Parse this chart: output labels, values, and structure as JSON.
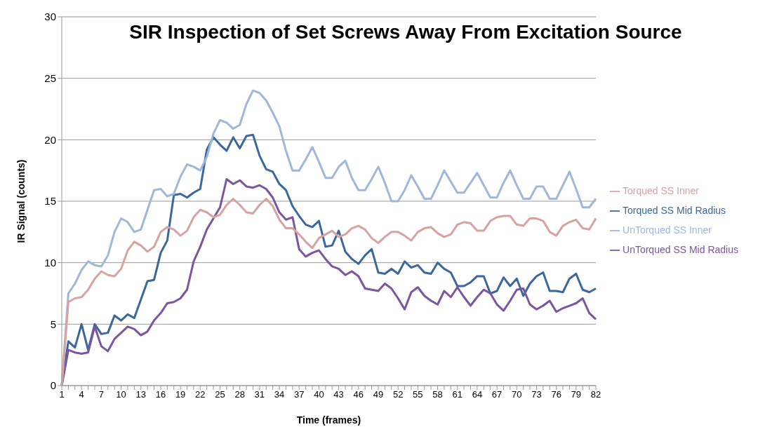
{
  "chart_data": {
    "type": "line",
    "title": "SIR Inspection of Set Screws Away From Excitation Source",
    "xlabel": "Time (frames)",
    "ylabel": "IR Signal (counts)",
    "categories": [
      "1",
      null,
      null,
      "4",
      null,
      null,
      "7",
      null,
      null,
      "10",
      null,
      null,
      "13",
      null,
      null,
      "16",
      null,
      null,
      "19",
      null,
      null,
      "22",
      null,
      null,
      "25",
      null,
      null,
      "28",
      null,
      null,
      "31",
      null,
      null,
      "34",
      null,
      null,
      "37",
      null,
      null,
      "40",
      null,
      null,
      "43",
      null,
      null,
      "46",
      null,
      null,
      "49",
      null,
      null,
      "52",
      null,
      null,
      "55",
      null,
      null,
      "58",
      null,
      null,
      "61",
      null,
      null,
      "64",
      null,
      null,
      "67",
      null,
      null,
      "70",
      null,
      null,
      "73",
      null,
      null,
      "76",
      null,
      null,
      "79",
      null,
      null,
      "82"
    ],
    "series": [
      {
        "name": "Torqued SS Mid Radius",
        "color": "#3a679c",
        "values": [
          0,
          3.6,
          3.1,
          5.0,
          2.9,
          5.0,
          4.2,
          4.3,
          5.7,
          5.3,
          5.8,
          5.5,
          7.0,
          8.5,
          8.6,
          10.8,
          11.8,
          15.5,
          15.6,
          15.3,
          15.7,
          16.0,
          19.2,
          20.2,
          19.6,
          19.1,
          20.2,
          19.3,
          20.3,
          20.4,
          18.7,
          17.6,
          17.4,
          16.4,
          15.9,
          14.6,
          13.8,
          13.1,
          12.9,
          13.4,
          11.3,
          11.4,
          12.6,
          10.9,
          10.3,
          9.9,
          10.6,
          11.1,
          9.2,
          9.1,
          9.5,
          9.1,
          10.1,
          9.6,
          9.8,
          9.2,
          9.1,
          10.0,
          9.5,
          9.2,
          8.1,
          8.1,
          8.4,
          8.9,
          8.9,
          7.5,
          7.7,
          8.8,
          8.1,
          8.7,
          7.3,
          8.3,
          8.9,
          9.2,
          7.7,
          7.7,
          7.6,
          8.7,
          9.1,
          7.8,
          7.6,
          7.9
        ]
      },
      {
        "name": "UnTorqued SS Mid Radius",
        "color": "#7b559e",
        "values": [
          0,
          2.9,
          2.7,
          2.6,
          2.7,
          4.8,
          3.2,
          2.8,
          3.8,
          4.3,
          4.8,
          4.6,
          4.1,
          4.4,
          5.3,
          5.9,
          6.7,
          6.8,
          7.1,
          7.8,
          10.1,
          11.3,
          12.7,
          13.6,
          14.5,
          16.8,
          16.4,
          16.7,
          16.2,
          16.1,
          16.3,
          16.0,
          15.3,
          14.1,
          13.5,
          13.7,
          11.1,
          10.5,
          10.8,
          11.0,
          10.3,
          9.7,
          9.5,
          9.0,
          9.3,
          8.9,
          7.9,
          7.8,
          7.7,
          8.3,
          7.9,
          7.1,
          6.2,
          7.6,
          8.0,
          7.3,
          6.9,
          6.6,
          7.7,
          7.2,
          8.0,
          7.2,
          6.5,
          7.2,
          7.8,
          7.5,
          6.6,
          6.1,
          6.9,
          7.8,
          7.9,
          6.6,
          6.2,
          6.5,
          6.9,
          6.0,
          6.3,
          6.5,
          6.7,
          7.1,
          5.9,
          5.4
        ]
      },
      {
        "name": "UnTorqued SS Inner",
        "color": "#a0b7d9",
        "values": [
          0,
          7.5,
          8.3,
          9.4,
          10.1,
          9.8,
          9.7,
          10.6,
          12.5,
          13.6,
          13.3,
          12.5,
          12.7,
          14.3,
          15.9,
          16.0,
          15.4,
          15.6,
          17.0,
          18.0,
          17.8,
          17.5,
          18.6,
          20.5,
          21.6,
          21.4,
          20.9,
          21.2,
          22.9,
          24.0,
          23.8,
          23.2,
          22.2,
          21.1,
          19.1,
          17.5,
          17.5,
          18.4,
          19.4,
          18.2,
          16.9,
          16.9,
          17.8,
          18.3,
          16.9,
          15.9,
          15.9,
          16.8,
          17.8,
          16.5,
          15.0,
          15.0,
          15.9,
          17.1,
          16.2,
          15.2,
          15.2,
          16.3,
          17.5,
          16.6,
          15.7,
          15.7,
          16.5,
          17.3,
          16.3,
          15.3,
          15.3,
          16.5,
          17.5,
          16.3,
          15.2,
          15.2,
          16.2,
          16.2,
          15.2,
          15.2,
          16.3,
          17.4,
          16.0,
          14.5,
          14.5,
          15.2
        ]
      },
      {
        "name": "Torqued SS Inner",
        "color": "#d7a3a0",
        "values": [
          0,
          6.8,
          7.1,
          7.2,
          7.8,
          8.7,
          9.3,
          9.0,
          8.9,
          9.5,
          11.0,
          11.7,
          11.4,
          10.9,
          11.3,
          12.5,
          12.9,
          12.7,
          12.2,
          12.6,
          13.7,
          14.3,
          14.1,
          13.7,
          13.9,
          14.7,
          15.2,
          14.7,
          14.1,
          14.0,
          14.7,
          15.2,
          14.6,
          13.5,
          12.8,
          12.8,
          12.3,
          11.7,
          11.2,
          12.0,
          12.3,
          12.6,
          12.1,
          12.3,
          12.8,
          13.0,
          12.7,
          12.0,
          11.6,
          12.1,
          12.5,
          12.5,
          12.2,
          11.8,
          12.5,
          12.8,
          12.9,
          12.4,
          12.1,
          12.3,
          13.1,
          13.3,
          13.2,
          12.6,
          12.6,
          13.4,
          13.7,
          13.8,
          13.8,
          13.1,
          13.0,
          13.6,
          13.6,
          13.4,
          12.5,
          12.2,
          13.0,
          13.3,
          13.5,
          12.8,
          12.7,
          13.6
        ]
      }
    ],
    "ylim": [
      0,
      30
    ],
    "yticks": [
      0,
      5,
      10,
      15,
      20,
      25,
      30
    ],
    "grid": "y",
    "legend": "right",
    "marker": "none",
    "line_style": "solid"
  }
}
